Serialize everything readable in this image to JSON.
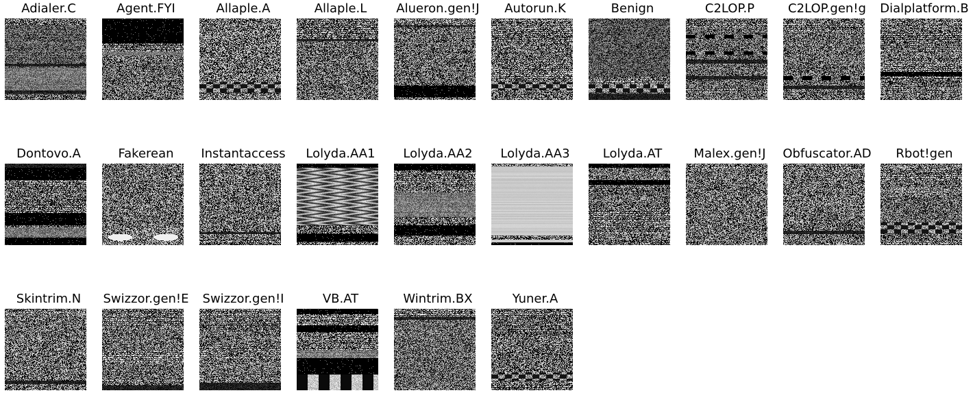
{
  "panels": [
    {
      "label": "Adialer.C"
    },
    {
      "label": "Agent.FYI"
    },
    {
      "label": "Allaple.A"
    },
    {
      "label": "Allaple.L"
    },
    {
      "label": "Alueron.gen!J"
    },
    {
      "label": "Autorun.K"
    },
    {
      "label": "Benign"
    },
    {
      "label": "C2LOP.P"
    },
    {
      "label": "C2LOP.gen!g"
    },
    {
      "label": "Dialplatform.B"
    },
    {
      "label": "Dontovo.A"
    },
    {
      "label": "Fakerean"
    },
    {
      "label": "Instantaccess"
    },
    {
      "label": "Lolyda.AA1"
    },
    {
      "label": "Lolyda.AA2"
    },
    {
      "label": "Lolyda.AA3"
    },
    {
      "label": "Lolyda.AT"
    },
    {
      "label": "Malex.gen!J"
    },
    {
      "label": "Obfuscator.AD"
    },
    {
      "label": "Rbot!gen"
    },
    {
      "label": "Skintrim.N"
    },
    {
      "label": "Swizzor.gen!E"
    },
    {
      "label": "Swizzor.gen!I"
    },
    {
      "label": "VB.AT"
    },
    {
      "label": "Wintrim.BX"
    },
    {
      "label": "Yuner.A"
    }
  ]
}
